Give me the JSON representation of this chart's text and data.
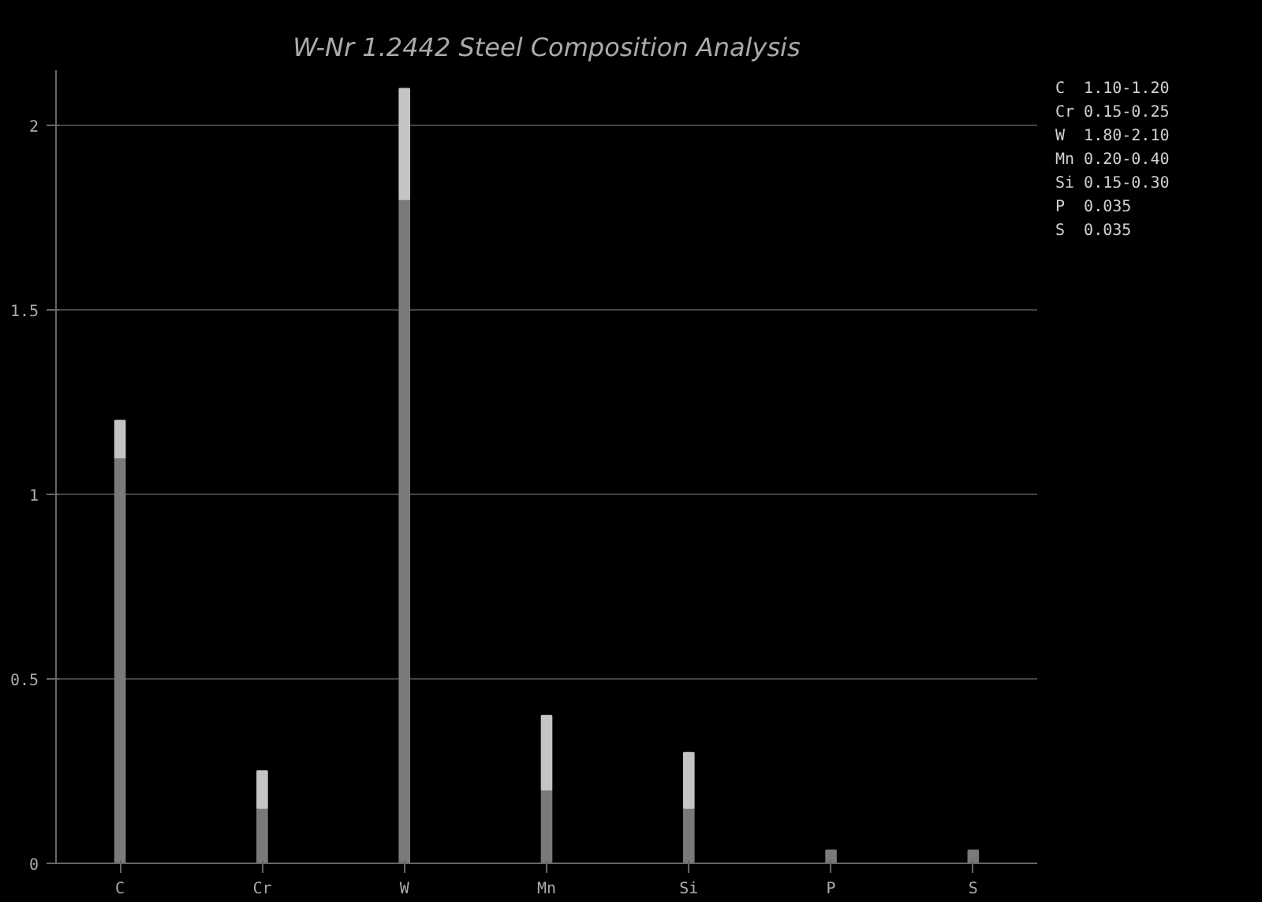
{
  "chart_data": {
    "type": "bar",
    "title": "W-Nr 1.2442 Steel Composition Analysis",
    "categories": [
      "C",
      "Cr",
      "W",
      "Mn",
      "Si",
      "P",
      "S"
    ],
    "stacked": true,
    "series": [
      {
        "color": "#7a7a7a",
        "values": [
          1.1,
          0.15,
          1.8,
          0.2,
          0.15,
          0.035,
          0.035
        ]
      },
      {
        "color": "#c4c4c4",
        "values": [
          0.1,
          0.1,
          0.3,
          0.2,
          0.15,
          null,
          null
        ]
      }
    ],
    "ylim": [
      0,
      2.15
    ],
    "yticks": [
      0,
      0.5,
      1,
      1.5,
      2
    ],
    "grid": "y",
    "annotations": [
      "C  1.10-1.20",
      "Cr 0.15-0.25",
      "W  1.80-2.10",
      "Mn 0.20-0.40",
      "Si 0.15-0.30",
      "P  0.035",
      "S  0.035"
    ]
  }
}
